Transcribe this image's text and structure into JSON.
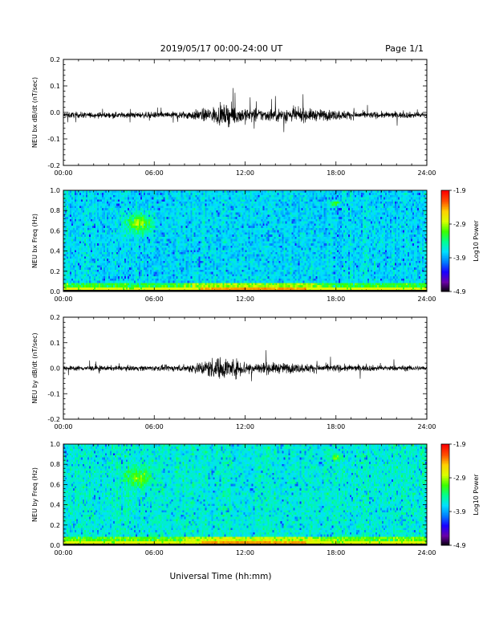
{
  "header": {
    "title": "2019/05/17  00:00-24:00 UT",
    "page": "Page 1/1"
  },
  "xlabel": "Universal Time (hh:mm)",
  "colors": {
    "trace": "#000000",
    "colormap": [
      "#000000",
      "#6a00a8",
      "#1a00ff",
      "#0080ff",
      "#00e0ff",
      "#00ff90",
      "#3cff00",
      "#d8ff00",
      "#ffd000",
      "#ff5000",
      "#ff0000"
    ]
  },
  "chart_data": [
    {
      "type": "line",
      "name": "bx-time-series",
      "ylabel": "NEU bx dB/dt (nT/sec)",
      "xlim": [
        0,
        24
      ],
      "ylim": [
        -0.2,
        0.2
      ],
      "x_ticks": [
        "00:00",
        "06:00",
        "12:00",
        "18:00",
        "24:00"
      ],
      "y_ticks": [
        "-0.2",
        "-0.1",
        "0.0",
        "0.1",
        "0.2"
      ],
      "baseline": -0.01,
      "envelope": {
        "hours": [
          0,
          2,
          4,
          6,
          7,
          8,
          9,
          10,
          11,
          12,
          13,
          14,
          15,
          16,
          17,
          18,
          19,
          20,
          22,
          24
        ],
        "amplitude": [
          0.012,
          0.011,
          0.011,
          0.012,
          0.013,
          0.016,
          0.022,
          0.034,
          0.04,
          0.032,
          0.024,
          0.026,
          0.03,
          0.025,
          0.022,
          0.02,
          0.016,
          0.013,
          0.012,
          0.012
        ]
      }
    },
    {
      "type": "heatmap",
      "name": "bx-spectrogram",
      "ylabel": "NEU bx Freq (Hz)",
      "xlim": [
        0,
        24
      ],
      "ylim": [
        0,
        1.0
      ],
      "x_ticks": [
        "00:00",
        "06:00",
        "12:00",
        "18:00",
        "24:00"
      ],
      "y_ticks": [
        "0.0",
        "0.2",
        "0.4",
        "0.6",
        "0.8",
        "1.0"
      ],
      "colorbar": {
        "label": "Log10 Power",
        "range": [
          -4.9,
          -1.9
        ],
        "ticks": [
          "-1.9",
          "-2.9",
          "-3.9",
          "-4.9"
        ]
      }
    },
    {
      "type": "line",
      "name": "by-time-series",
      "ylabel": "NEU by dB/dt (nT/sec)",
      "xlim": [
        0,
        24
      ],
      "ylim": [
        -0.2,
        0.2
      ],
      "x_ticks": [
        "00:00",
        "06:00",
        "12:00",
        "18:00",
        "24:00"
      ],
      "y_ticks": [
        "-0.2",
        "-0.1",
        "0.0",
        "0.1",
        "0.2"
      ],
      "baseline": 0.0,
      "envelope": {
        "hours": [
          0,
          2,
          4,
          6,
          7,
          8,
          9,
          10,
          11,
          12,
          13,
          14,
          15,
          16,
          17,
          18,
          19,
          20,
          22,
          24
        ],
        "amplitude": [
          0.01,
          0.01,
          0.01,
          0.011,
          0.012,
          0.014,
          0.026,
          0.045,
          0.042,
          0.03,
          0.024,
          0.022,
          0.02,
          0.018,
          0.016,
          0.015,
          0.013,
          0.012,
          0.011,
          0.011
        ]
      }
    },
    {
      "type": "heatmap",
      "name": "by-spectrogram",
      "ylabel": "NEU by Freq (Hz)",
      "xlim": [
        0,
        24
      ],
      "ylim": [
        0,
        1.0
      ],
      "x_ticks": [
        "00:00",
        "06:00",
        "12:00",
        "18:00",
        "24:00"
      ],
      "y_ticks": [
        "0.0",
        "0.2",
        "0.4",
        "0.6",
        "0.8",
        "1.0"
      ],
      "colorbar": {
        "label": "Log10 Power",
        "range": [
          -4.9,
          -1.9
        ],
        "ticks": [
          "-1.9",
          "-2.9",
          "-3.9",
          "-4.9"
        ]
      }
    }
  ]
}
